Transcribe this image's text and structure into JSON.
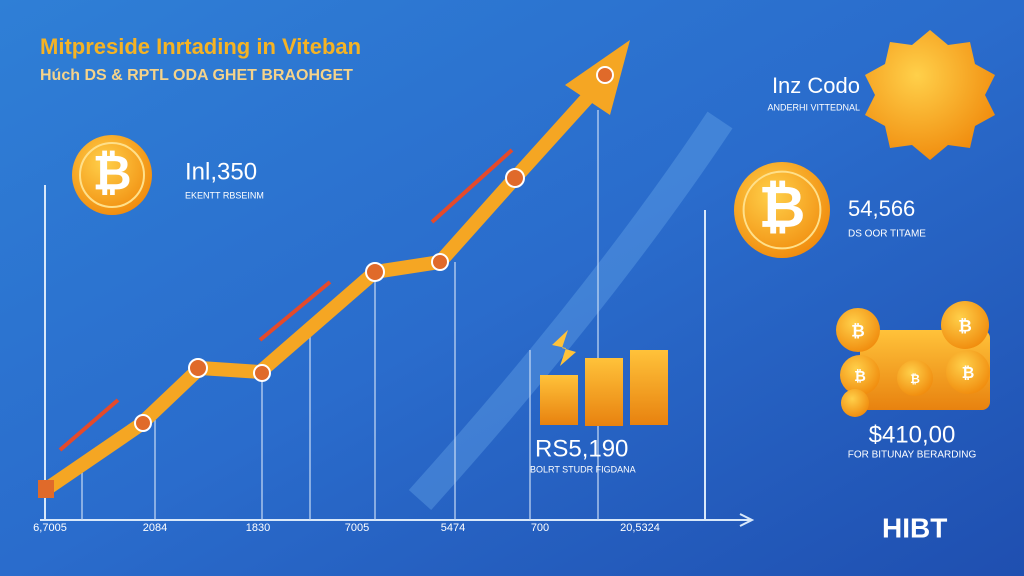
{
  "header": {
    "title": "Mitpreside Inrtading in Viteban",
    "subtitle": "Húch DS & RPTL ODA GHET BRAOHGET"
  },
  "coin_symbol": "₿",
  "stats": [
    {
      "value": "Inl,350",
      "caption": "EKENTT RBSEINM"
    },
    {
      "value": "Inz Codo",
      "caption": "ANDERHI VITTEDNAL"
    },
    {
      "value": "54,566",
      "caption": "DS OOR TITAME"
    },
    {
      "value": "RS5,190",
      "caption": "BOLRT STUDR FIGDANA"
    },
    {
      "value": "$410,00",
      "caption": "FOR BITUNAY BERARDING"
    }
  ],
  "axis_labels": [
    "6,7005",
    "2084",
    "1830",
    "7005",
    "5474",
    "700",
    "20,5324"
  ],
  "logo": "HIBT"
}
